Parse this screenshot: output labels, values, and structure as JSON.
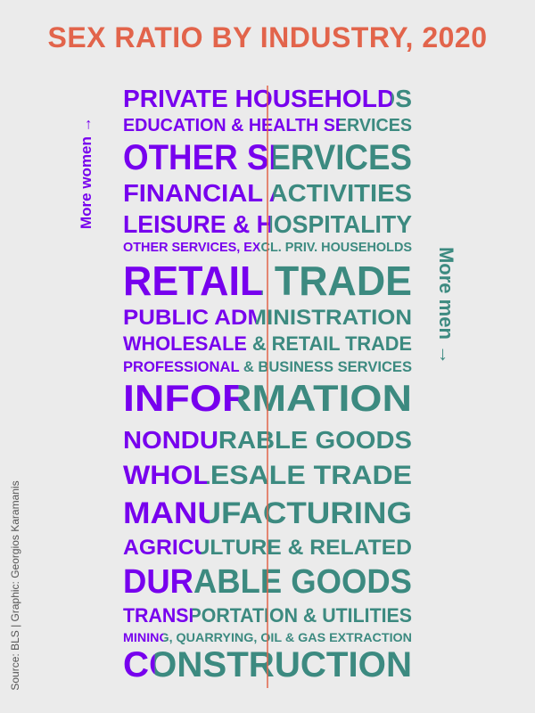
{
  "title": "SEX RATIO BY INDUSTRY, 2020",
  "labels": {
    "more_women": "More women",
    "more_men": "More men",
    "women_arrow": "→",
    "men_arrow": "→"
  },
  "source": "Source: BLS | Graphic: Georgios Karamanis",
  "colors": {
    "title": "#e2644b",
    "women": "#7700ee",
    "men": "#3c8a80",
    "divider": "#e2644b",
    "background": "#ebebeb"
  },
  "chart_data": {
    "type": "bar",
    "encoding": "Each industry name is split at the share of women employed; left portion colored for women, right portion for men. Text size reflects relative employment.",
    "categories": [
      "PRIVATE HOUSEHOLDS",
      "EDUCATION & HEALTH SERVICES",
      "OTHER SERVICES",
      "FINANCIAL ACTIVITIES",
      "LEISURE & HOSPITALITY",
      "OTHER SERVICES, EXCL. PRIV. HOUSEHOLDS",
      "RETAIL TRADE",
      "PUBLIC ADMINISTRATION",
      "WHOLESALE & RETAIL TRADE",
      "PROFESSIONAL & BUSINESS SERVICES",
      "INFORMATION",
      "NONDURABLE GOODS",
      "WHOLESALE TRADE",
      "MANUFACTURING",
      "AGRICULTURE & RELATED",
      "DURABLE GOODS",
      "TRANSPORTATION & UTILITIES",
      "MINING, QUARRYING, OIL & GAS EXTRACTION",
      "CONSTRUCTION"
    ],
    "series": [
      {
        "name": "Women share",
        "values": [
          0.93,
          0.75,
          0.52,
          0.52,
          0.51,
          0.47,
          0.48,
          0.46,
          0.44,
          0.42,
          0.4,
          0.33,
          0.29,
          0.3,
          0.27,
          0.24,
          0.24,
          0.14,
          0.11
        ]
      }
    ],
    "xlim": [
      0,
      1
    ],
    "midline": 0.5
  }
}
